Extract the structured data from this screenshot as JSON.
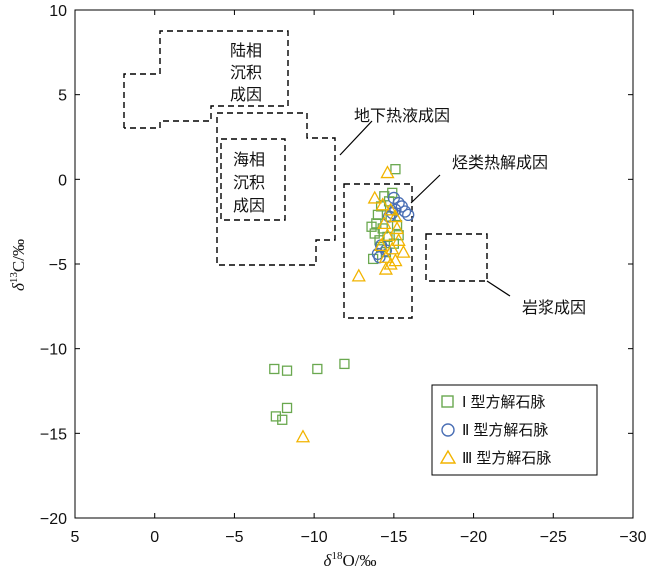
{
  "chart_data": {
    "type": "scatter",
    "x_label": {
      "italic": "δ",
      "sup": "18",
      "rest": "O/‰"
    },
    "y_label": {
      "italic": "δ",
      "sup": "13",
      "rest": "C/‰"
    },
    "xlim": [
      5,
      -30
    ],
    "ylim": [
      -20,
      10
    ],
    "x_ticks": [
      5,
      0,
      -5,
      -10,
      -15,
      -20,
      -25,
      -30
    ],
    "y_ticks": [
      10,
      5,
      0,
      -5,
      -10,
      -15,
      -20
    ],
    "x_tick_labels": [
      "5",
      "0",
      "−5",
      "−10",
      "−15",
      "−20",
      "−25",
      "−30"
    ],
    "y_tick_labels": [
      "10",
      "5",
      "0",
      "−5",
      "−10",
      "−15",
      "−20"
    ],
    "zones": [
      {
        "label_lines": [
          "陆相",
          "沉积",
          "成因"
        ]
      },
      {
        "label_lines": [
          "海相",
          "沉积",
          "成因"
        ]
      },
      {
        "label": "地下热液成因"
      },
      {
        "label": "烃类热解成因"
      },
      {
        "label": "岩浆成因"
      }
    ],
    "series": [
      {
        "name": "Ⅰ型方解石脉",
        "label_prefix": "Ⅰ",
        "label_rest": "型方解石脉",
        "marker": "square",
        "color": "#6aa84f",
        "points": [
          [
            -7.5,
            -11.2
          ],
          [
            -8.3,
            -11.3
          ],
          [
            -10.2,
            -11.2
          ],
          [
            -11.9,
            -10.9
          ],
          [
            -7.6,
            -14.0
          ],
          [
            -8.0,
            -14.2
          ],
          [
            -8.3,
            -13.5
          ],
          [
            -15.1,
            0.6
          ],
          [
            -14.9,
            -0.8
          ],
          [
            -14.4,
            -1.0
          ],
          [
            -14.7,
            -1.3
          ],
          [
            -14.2,
            -1.6
          ],
          [
            -14.0,
            -2.1
          ],
          [
            -13.9,
            -2.6
          ],
          [
            -14.3,
            -2.9
          ],
          [
            -13.8,
            -3.2
          ],
          [
            -14.1,
            -3.6
          ],
          [
            -14.8,
            -2.2
          ],
          [
            -15.2,
            -2.7
          ],
          [
            -14.6,
            -3.4
          ],
          [
            -13.6,
            -2.8
          ],
          [
            -13.7,
            -4.7
          ],
          [
            -14.5,
            -4.3
          ],
          [
            -15.0,
            -3.8
          ],
          [
            -14.2,
            -4.0
          ],
          [
            -15.3,
            -3.3
          ]
        ]
      },
      {
        "name": "Ⅱ型方解石脉",
        "label_prefix": "Ⅱ",
        "label_rest": "型方解石脉",
        "marker": "circle",
        "color": "#4a6fb5",
        "points": [
          [
            -15.0,
            -1.1
          ],
          [
            -15.3,
            -1.4
          ],
          [
            -15.5,
            -1.6
          ],
          [
            -15.7,
            -1.9
          ],
          [
            -15.9,
            -2.1
          ],
          [
            -15.1,
            -1.8
          ],
          [
            -14.9,
            -2.0
          ],
          [
            -14.7,
            -2.2
          ],
          [
            -14.2,
            -3.9
          ],
          [
            -14.0,
            -4.4
          ],
          [
            -14.1,
            -4.6
          ],
          [
            -14.5,
            -4.2
          ]
        ]
      },
      {
        "name": "Ⅲ型方解石脉",
        "label_prefix": "Ⅲ",
        "label_rest": "型方解石脉",
        "marker": "triangle",
        "color": "#f2b400",
        "points": [
          [
            -14.6,
            0.4
          ],
          [
            -13.8,
            -1.1
          ],
          [
            -14.3,
            -1.5
          ],
          [
            -14.8,
            -1.8
          ],
          [
            -15.1,
            -2.2
          ],
          [
            -14.4,
            -2.6
          ],
          [
            -15.2,
            -2.9
          ],
          [
            -14.6,
            -3.3
          ],
          [
            -15.3,
            -3.6
          ],
          [
            -14.9,
            -4.1
          ],
          [
            -15.6,
            -4.3
          ],
          [
            -14.5,
            -4.6
          ],
          [
            -14.8,
            -5.0
          ],
          [
            -14.5,
            -5.3
          ],
          [
            -15.1,
            -4.8
          ],
          [
            -12.8,
            -5.7
          ],
          [
            -14.2,
            -3.9
          ],
          [
            -9.3,
            -15.2
          ]
        ]
      }
    ]
  }
}
